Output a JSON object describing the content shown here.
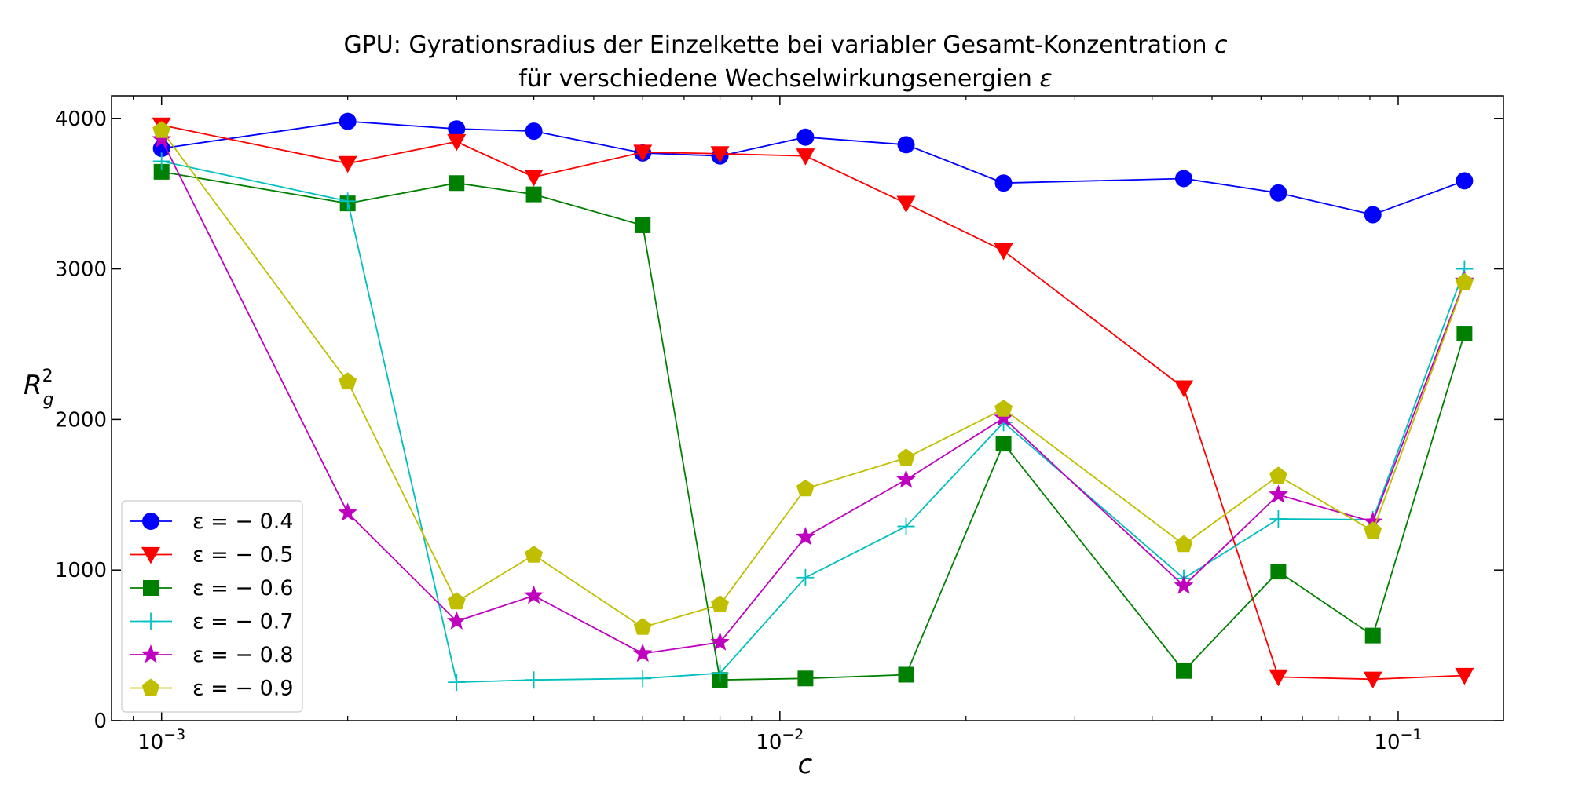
{
  "chart_data": {
    "type": "line",
    "title_line1": "GPU: Gyrationsradius der Einzelkette bei variabler Gesamt-Konzentration",
    "title_var1": "c",
    "title_line2": "für verschiedene Wechselwirkungsenergien",
    "title_var2": "ε",
    "xlabel": "c",
    "ylabel_base": "R",
    "ylabel_sub": "g",
    "ylabel_sup": "2",
    "x_scale": "log",
    "xlim": [
      0.00083,
      0.148
    ],
    "ylim": [
      0,
      4150
    ],
    "x_ticks": [
      {
        "value": 0.001,
        "base": "10",
        "exp": "−3"
      },
      {
        "value": 0.01,
        "base": "10",
        "exp": "−2"
      },
      {
        "value": 0.1,
        "base": "10",
        "exp": "−1"
      }
    ],
    "y_ticks": [
      {
        "value": 0,
        "label": "0"
      },
      {
        "value": 1000,
        "label": "1000"
      },
      {
        "value": 2000,
        "label": "2000"
      },
      {
        "value": 3000,
        "label": "3000"
      },
      {
        "value": 4000,
        "label": "4000"
      }
    ],
    "grid": false,
    "legend_position": "lower-left",
    "series": [
      {
        "name": "ε = − 0.4",
        "color": "#0000ff",
        "marker": "circle",
        "x": [
          0.001,
          0.002,
          0.003,
          0.004,
          0.006,
          0.008,
          0.011,
          0.016,
          0.023,
          0.045,
          0.064,
          0.091,
          0.128
        ],
        "y": [
          3800,
          3980,
          3930,
          3915,
          3770,
          3750,
          3875,
          3825,
          3570,
          3600,
          3505,
          3360,
          3585
        ]
      },
      {
        "name": "ε = − 0.5",
        "color": "#ff0000",
        "marker": "triangle-down",
        "x": [
          0.001,
          0.002,
          0.003,
          0.004,
          0.006,
          0.008,
          0.011,
          0.016,
          0.023,
          0.045,
          0.064,
          0.091,
          0.128
        ],
        "y": [
          3955,
          3700,
          3845,
          3610,
          3775,
          3765,
          3750,
          3435,
          3120,
          2210,
          290,
          275,
          300
        ]
      },
      {
        "name": "ε = − 0.6",
        "color": "#008000",
        "marker": "square",
        "x": [
          0.001,
          0.002,
          0.003,
          0.004,
          0.006,
          0.008,
          0.011,
          0.016,
          0.023,
          0.045,
          0.064,
          0.091,
          0.128
        ],
        "y": [
          3645,
          3435,
          3570,
          3495,
          3290,
          270,
          280,
          305,
          1840,
          330,
          990,
          565,
          2570
        ]
      },
      {
        "name": "ε = − 0.7",
        "color": "#00bfbf",
        "marker": "plus",
        "x": [
          0.001,
          0.002,
          0.003,
          0.004,
          0.006,
          0.008,
          0.011,
          0.016,
          0.023,
          0.045,
          0.064,
          0.091,
          0.128
        ],
        "y": [
          3715,
          3450,
          255,
          270,
          280,
          315,
          950,
          1290,
          1980,
          945,
          1340,
          1335,
          3000
        ]
      },
      {
        "name": "ε = − 0.8",
        "color": "#bf00bf",
        "marker": "star",
        "x": [
          0.001,
          0.002,
          0.003,
          0.004,
          0.006,
          0.008,
          0.011,
          0.016,
          0.023,
          0.045,
          0.064,
          0.091,
          0.128
        ],
        "y": [
          3860,
          1380,
          660,
          830,
          445,
          520,
          1220,
          1600,
          2010,
          895,
          1500,
          1320,
          2920
        ]
      },
      {
        "name": "ε = − 0.9",
        "color": "#bfbf00",
        "marker": "pentagon",
        "x": [
          0.001,
          0.002,
          0.003,
          0.004,
          0.006,
          0.008,
          0.011,
          0.016,
          0.023,
          0.045,
          0.064,
          0.091,
          0.128
        ],
        "y": [
          3920,
          2250,
          790,
          1100,
          620,
          770,
          1540,
          1745,
          2070,
          1170,
          1625,
          1260,
          2910
        ]
      }
    ]
  }
}
